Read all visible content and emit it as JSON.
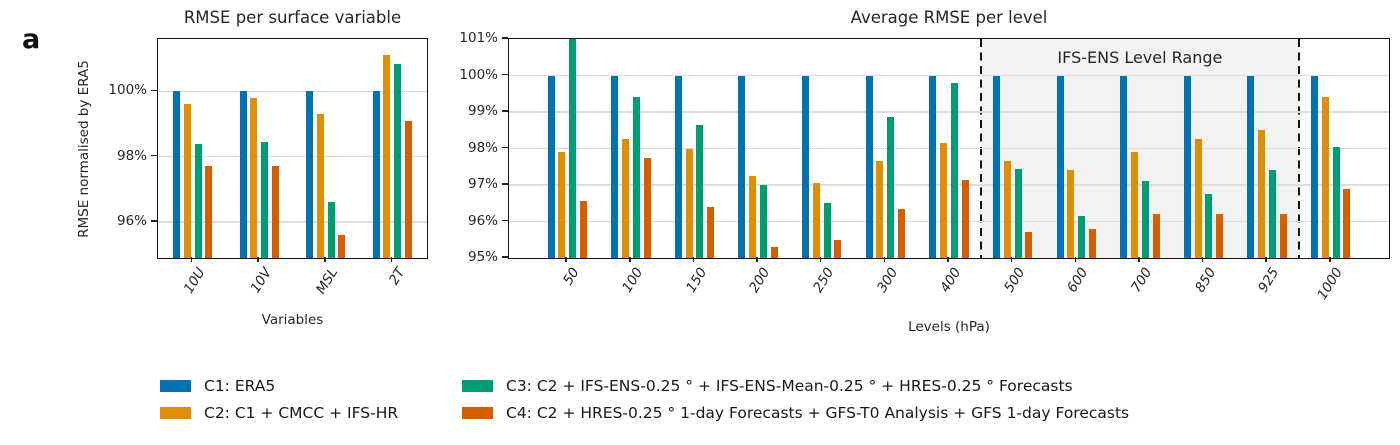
{
  "panel_label": "a",
  "palette": {
    "C1": "#0173B2",
    "C2": "#DE8F05",
    "C3": "#029E73",
    "C4": "#D55E00"
  },
  "legend": {
    "items": [
      {
        "id": "C1",
        "color": "#0173B2",
        "label": "C1: ERA5"
      },
      {
        "id": "C2",
        "color": "#DE8F05",
        "label": "C2: C1 + CMCC + IFS-HR"
      },
      {
        "id": "C3",
        "color": "#029E73",
        "label": "C3: C2 + IFS-ENS-0.25 ° + IFS-ENS-Mean-0.25 ° + HRES-0.25 ° Forecasts"
      },
      {
        "id": "C4",
        "color": "#D55E00",
        "label": "C4: C2 + HRES-0.25 ° 1-day Forecasts + GFS-T0 Analysis + GFS 1-day Forecasts"
      }
    ]
  },
  "chart_data": [
    {
      "type": "bar",
      "title": "RMSE per surface variable",
      "xlabel": "Variables",
      "ylabel": "RMSE normalised by ERA5",
      "categories": [
        "10U",
        "10V",
        "MSL",
        "2T"
      ],
      "ylim": [
        94.9,
        101.6
      ],
      "yticks": [
        96,
        98,
        100
      ],
      "ytick_labels": [
        "96%",
        "98%",
        "100%"
      ],
      "grid": true,
      "legend_position": "bottom-figure",
      "series": [
        {
          "name": "C1",
          "color": "#0173B2",
          "values": [
            100.0,
            100.0,
            100.0,
            100.0
          ]
        },
        {
          "name": "C2",
          "color": "#DE8F05",
          "values": [
            99.6,
            99.8,
            99.3,
            101.1
          ]
        },
        {
          "name": "C3",
          "color": "#029E73",
          "values": [
            98.4,
            98.45,
            96.6,
            100.85
          ]
        },
        {
          "name": "C4",
          "color": "#D55E00",
          "values": [
            97.7,
            97.7,
            95.6,
            99.1
          ]
        }
      ]
    },
    {
      "type": "bar",
      "title": "Average RMSE per level",
      "xlabel": "Levels (hPa)",
      "ylabel": "",
      "categories": [
        "50",
        "100",
        "150",
        "200",
        "250",
        "300",
        "400",
        "500",
        "600",
        "700",
        "850",
        "925",
        "1000"
      ],
      "ylim": [
        95,
        101
      ],
      "yticks": [
        95,
        96,
        97,
        98,
        99,
        100,
        101
      ],
      "ytick_labels": [
        "95%",
        "96%",
        "97%",
        "98%",
        "99%",
        "100%",
        "101%"
      ],
      "grid": true,
      "annotation_band": {
        "label": "IFS-ENS Level Range",
        "from_category": "500",
        "to_category": "925",
        "fill": "#f2f2f2",
        "edge_style": "dashed-black"
      },
      "series": [
        {
          "name": "C1",
          "color": "#0173B2",
          "values": [
            100.0,
            100.0,
            100.0,
            100.0,
            100.0,
            100.0,
            100.0,
            100.0,
            100.0,
            100.0,
            100.0,
            100.0,
            100.0
          ]
        },
        {
          "name": "C2",
          "color": "#DE8F05",
          "values": [
            97.9,
            98.25,
            98.0,
            97.25,
            97.05,
            97.65,
            98.15,
            97.65,
            97.4,
            97.9,
            98.25,
            98.5,
            99.4
          ]
        },
        {
          "name": "C3",
          "color": "#029E73",
          "values": [
            101.0,
            99.4,
            98.65,
            97.0,
            96.5,
            98.85,
            99.8,
            97.45,
            96.15,
            97.1,
            96.75,
            97.4,
            98.05
          ]
        },
        {
          "name": "C4",
          "color": "#D55E00",
          "values": [
            96.55,
            97.75,
            96.4,
            95.3,
            95.5,
            96.35,
            97.15,
            95.7,
            95.8,
            96.2,
            96.2,
            96.2,
            96.9
          ]
        }
      ]
    }
  ]
}
